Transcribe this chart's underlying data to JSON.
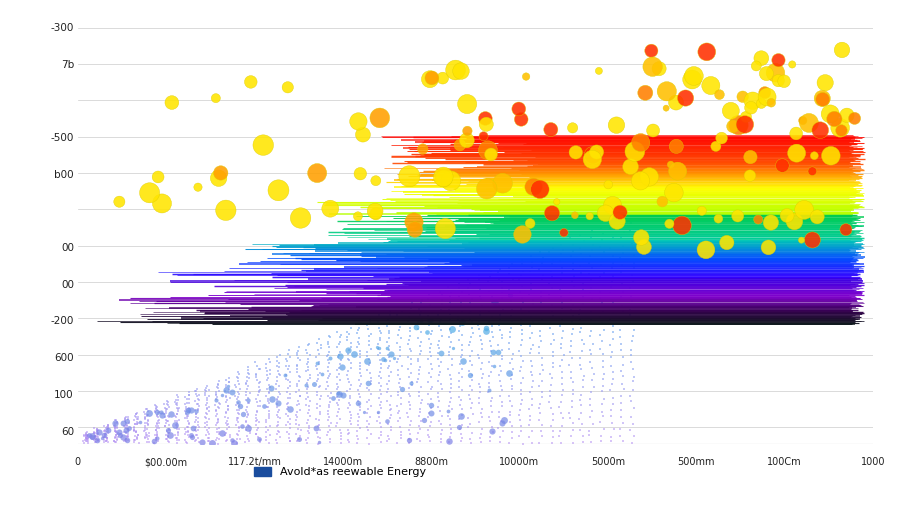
{
  "title": "",
  "xlabel": "Avold*as reewable Energy",
  "ylabel": "",
  "background_color": "#ffffff",
  "grid_color": "#cccccc",
  "x_tick_labels": [
    "0",
    "$00.00m",
    "117.2t/mm",
    "14000m",
    "8800m",
    "10000m",
    "5000m",
    "500mm",
    "100Cm",
    "1000"
  ],
  "y_tick_labels": [
    "-300",
    "7b",
    "",
    "-500",
    "b00",
    "",
    "00",
    "00",
    "-200",
    "600",
    "100",
    "60"
  ],
  "legend_label": "Avold*as reewable Energy",
  "legend_color": "#1a4d9e"
}
